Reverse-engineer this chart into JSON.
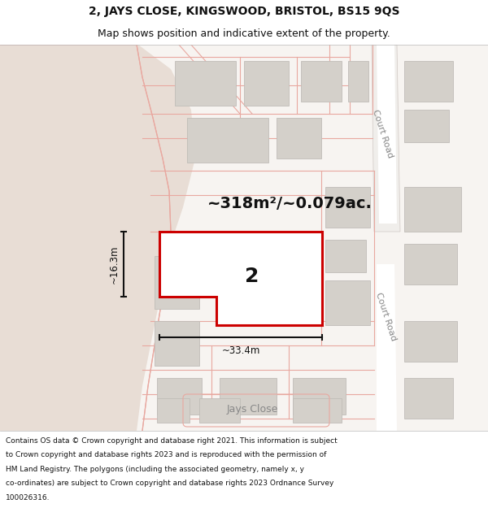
{
  "title_line1": "2, JAYS CLOSE, KINGSWOOD, BRISTOL, BS15 9QS",
  "title_line2": "Map shows position and indicative extent of the property.",
  "area_label": "~318m²/~0.079ac.",
  "property_number": "2",
  "width_label": "~33.4m",
  "height_label": "~16.3m",
  "road_label1": "Court Road",
  "road_label2": "Court Road",
  "street_label": "Jays Close",
  "footer_text": "Contains OS data © Crown copyright and database right 2021. This information is subject to Crown copyright and database rights 2023 and is reproduced with the permission of HM Land Registry. The polygons (including the associated geometry, namely x, y co-ordinates) are subject to Crown copyright and database rights 2023 Ordnance Survey 100026316.",
  "bg_white": "#ffffff",
  "map_bg": "#f7f4f1",
  "cliff_color": "#e8ddd5",
  "road_bg": "#ffffff",
  "road_line_color": "#e8a8a0",
  "road_line_color2": "#d0c8c4",
  "building_color": "#d4d0ca",
  "building_edge": "#c0bdb8",
  "plot_red": "#cc0000",
  "plot_fill": "#ffffff",
  "dim_color": "#111111",
  "text_dark": "#111111",
  "text_grey": "#888888",
  "text_mid": "#666666",
  "title_fontsize": 10,
  "subtitle_fontsize": 9,
  "area_fontsize": 14,
  "num_fontsize": 18,
  "dim_fontsize": 8.5,
  "road_fontsize": 8,
  "street_fontsize": 9
}
